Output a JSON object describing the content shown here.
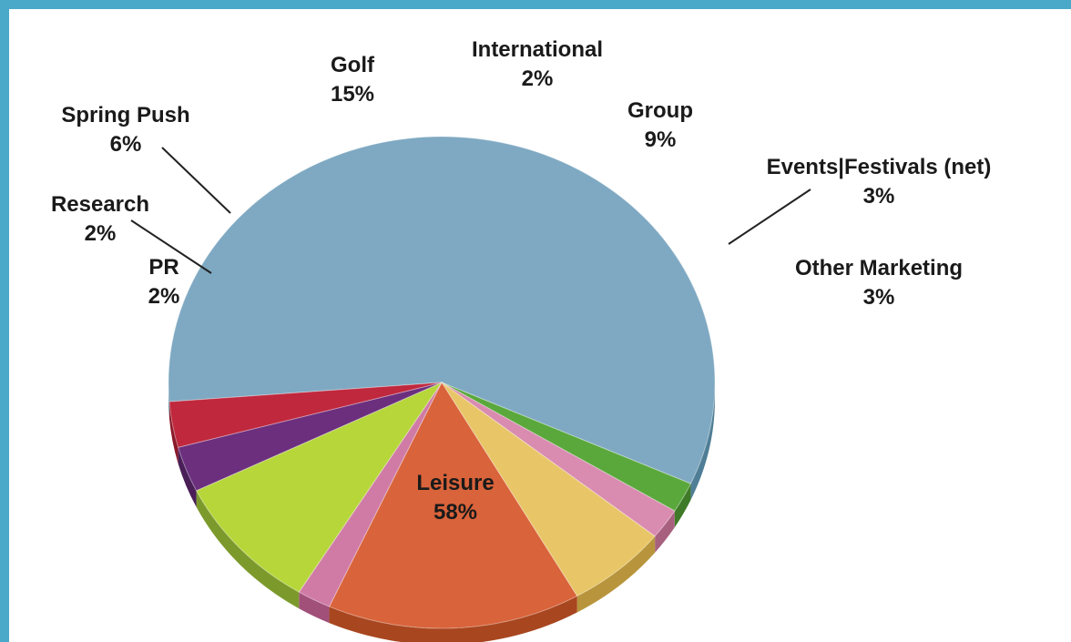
{
  "chart_data": {
    "type": "pie",
    "title": "",
    "slices": [
      {
        "label": "Leisure",
        "value": 58,
        "display": "58%",
        "color": "#7fa9c2",
        "side": "#4f7e96"
      },
      {
        "label": "PR",
        "value": 2,
        "display": "2%",
        "color": "#5aa83c",
        "side": "#3e7a28"
      },
      {
        "label": "Research",
        "value": 2,
        "display": "2%",
        "color": "#d98bb0",
        "side": "#a8607f"
      },
      {
        "label": "Spring Push",
        "value": 6,
        "display": "6%",
        "color": "#e8c667",
        "side": "#b8953c"
      },
      {
        "label": "Golf",
        "value": 15,
        "display": "15%",
        "color": "#d9633a",
        "side": "#a8461f"
      },
      {
        "label": "International",
        "value": 2,
        "display": "2%",
        "color": "#d07ba5",
        "side": "#a1507a"
      },
      {
        "label": "Group",
        "value": 9,
        "display": "9%",
        "color": "#b6d63a",
        "side": "#7c9a2c"
      },
      {
        "label": "Events|Festivals (net)",
        "value": 3,
        "display": "3%",
        "color": "#6b2f7e",
        "side": "#4a1f58"
      },
      {
        "label": "Other Marketing",
        "value": 3,
        "display": "3%",
        "color": "#c0283d",
        "side": "#8a1a2a"
      }
    ]
  }
}
